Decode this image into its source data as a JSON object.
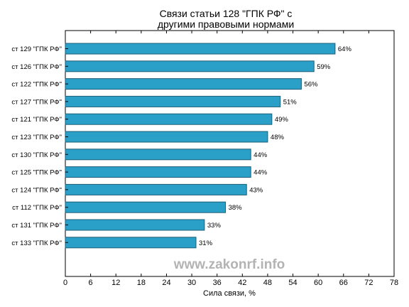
{
  "chart_data": {
    "type": "bar",
    "orientation": "horizontal",
    "title": "Связи статьи 128 \"ГПК РФ\" с\nдругими правовыми нормами",
    "xlabel": "Сила связи, %",
    "ylabel": "",
    "categories": [
      "ст 129 \"ГПК РФ\"",
      "ст 126 \"ГПК РФ\"",
      "ст 122 \"ГПК РФ\"",
      "ст 127 \"ГПК РФ\"",
      "ст 121 \"ГПК РФ\"",
      "ст 123 \"ГПК РФ\"",
      "ст 130 \"ГПК РФ\"",
      "ст 125 \"ГПК РФ\"",
      "ст 124 \"ГПК РФ\"",
      "ст 112 \"ГПК РФ\"",
      "ст 131 \"ГПК РФ\"",
      "ст 133 \"ГПК РФ\""
    ],
    "values": [
      64,
      59,
      56,
      51,
      49,
      48,
      44,
      44,
      43,
      38,
      33,
      31
    ],
    "data_labels": [
      "64%",
      "59%",
      "56%",
      "51%",
      "49%",
      "48%",
      "44%",
      "44%",
      "43%",
      "38%",
      "33%",
      "31%"
    ],
    "xlim": [
      0,
      78
    ],
    "xticks": [
      0,
      6,
      12,
      18,
      24,
      30,
      36,
      42,
      48,
      54,
      60,
      66,
      72,
      78
    ],
    "grid": false,
    "legend": "none",
    "bar_color": "#2a9fc7",
    "bar_edge_color": "#1d5f78"
  },
  "watermark": "www.zakonrf.info"
}
